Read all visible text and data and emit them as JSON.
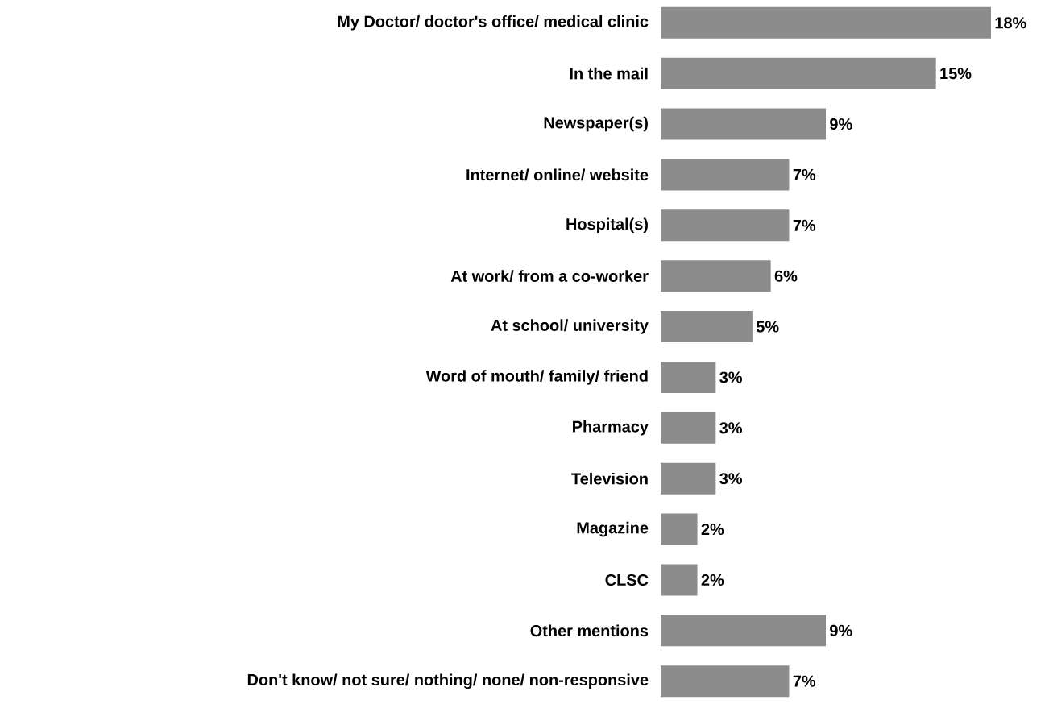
{
  "chart_data": {
    "type": "bar",
    "orientation": "horizontal",
    "color": "#8c8c8c",
    "categories": [
      "My Doctor/ doctor's office/ medical clinic",
      "In the mail",
      "Newspaper(s)",
      "Internet/ online/ website",
      "Hospital(s)",
      "At work/ from a co-worker",
      "At school/ university",
      "Word of mouth/ family/ friend",
      "Pharmacy",
      "Television",
      "Magazine",
      "CLSC",
      "Other mentions",
      "Don't know/ not sure/ nothing/ none/ non-responsive"
    ],
    "values": [
      18,
      15,
      9,
      7,
      7,
      6,
      5,
      3,
      3,
      3,
      2,
      2,
      9,
      7
    ],
    "value_labels": [
      "18%",
      "15%",
      "9%",
      "7%",
      "7%",
      "6%",
      "5%",
      "3%",
      "3%",
      "3%",
      "2%",
      "2%",
      "9%",
      "7%"
    ]
  }
}
